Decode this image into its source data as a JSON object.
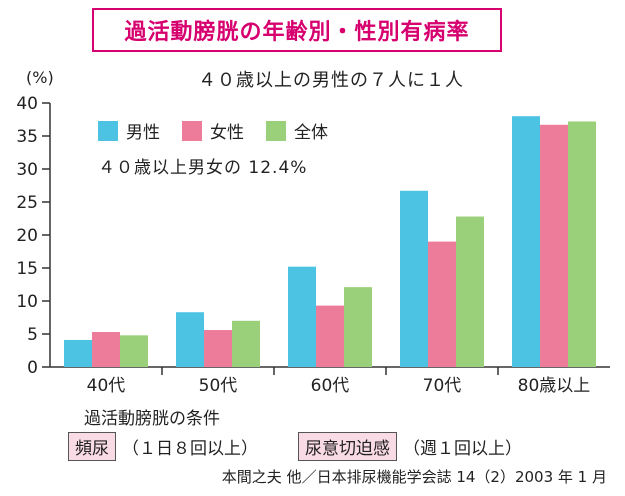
{
  "title": "過活動膀胱の年齢別・性別有病率",
  "y_unit": "(%)",
  "subtitle": "４０歳以上の男性の７人に１人",
  "note": "４０歳以上男女の 12.4%",
  "conditions": {
    "title": "過活動膀胱の条件",
    "items": [
      {
        "tag": "頻尿",
        "text": "（１日８回以上）"
      },
      {
        "tag": "尿意切迫感",
        "text": "（週１回以上）"
      }
    ]
  },
  "source": "本間之夫 他／日本排尿機能学会誌 14（2）2003 年 1 月",
  "colors": {
    "male": "#4dc3e3",
    "female": "#ed7c9a",
    "all": "#9bd07b",
    "title": "#d6006f"
  },
  "chart_data": {
    "type": "bar",
    "categories": [
      "40代",
      "50代",
      "60代",
      "70代",
      "80歳以上"
    ],
    "series": [
      {
        "name": "男性",
        "values": [
          4.1,
          8.3,
          15.2,
          26.7,
          38.0
        ]
      },
      {
        "name": "女性",
        "values": [
          5.3,
          5.6,
          9.3,
          19.0,
          36.7
        ]
      },
      {
        "name": "全体",
        "values": [
          4.8,
          7.0,
          12.1,
          22.8,
          37.2
        ]
      }
    ],
    "ylim": [
      0,
      40
    ],
    "yticks": [
      "0",
      "5",
      "10",
      "15",
      "20",
      "25",
      "30",
      "35",
      "40"
    ]
  }
}
